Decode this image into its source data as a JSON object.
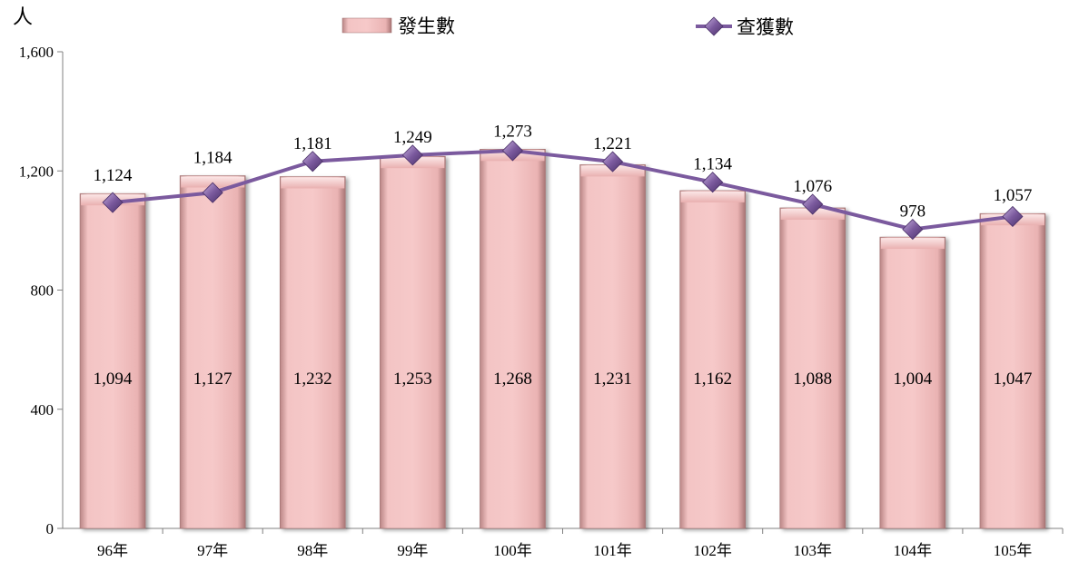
{
  "chart_data": {
    "type": "bar",
    "ylabel": "人",
    "ylim": [
      0,
      1600
    ],
    "yticks": [
      0,
      400,
      800,
      1200,
      1600
    ],
    "ytick_labels": [
      "0",
      "400",
      "800",
      "1,200",
      "1,600"
    ],
    "legend_position": "top-center",
    "categories": [
      "96年",
      "97年",
      "98年",
      "99年",
      "100年",
      "101年",
      "102年",
      "103年",
      "104年",
      "105年"
    ],
    "series": [
      {
        "name": "發生數",
        "type": "bar",
        "color": "#efb8b8",
        "values": [
          1124,
          1184,
          1181,
          1249,
          1273,
          1221,
          1134,
          1076,
          978,
          1057
        ],
        "labels": [
          "1,124",
          "1,184",
          "1,181",
          "1,249",
          "1,273",
          "1,221",
          "1,134",
          "1,076",
          "978",
          "1,057"
        ]
      },
      {
        "name": "查獲數",
        "type": "line",
        "color": "#7b5a9e",
        "values": [
          1094,
          1127,
          1232,
          1253,
          1268,
          1231,
          1162,
          1088,
          1004,
          1047
        ],
        "labels": [
          "1,094",
          "1,127",
          "1,232",
          "1,253",
          "1,268",
          "1,231",
          "1,162",
          "1,088",
          "1,004",
          "1,047"
        ]
      }
    ]
  }
}
